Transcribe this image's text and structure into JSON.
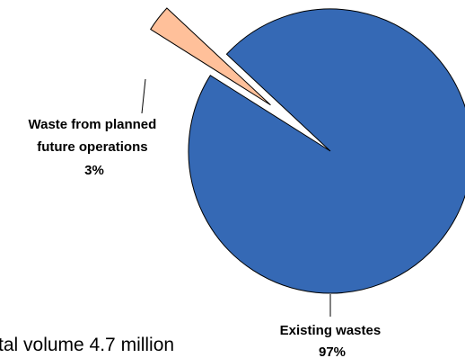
{
  "chart_data": {
    "type": "pie",
    "slices": [
      {
        "label_lines": [
          "Existing wastes",
          "97%"
        ],
        "value": 97,
        "color": "#3569B5"
      },
      {
        "label_lines": [
          "Waste from planned",
          "future operations",
          "3%"
        ],
        "value": 3,
        "color": "#FFC09A",
        "exploded": true
      }
    ],
    "footnote": "tal volume 4.7 million"
  }
}
